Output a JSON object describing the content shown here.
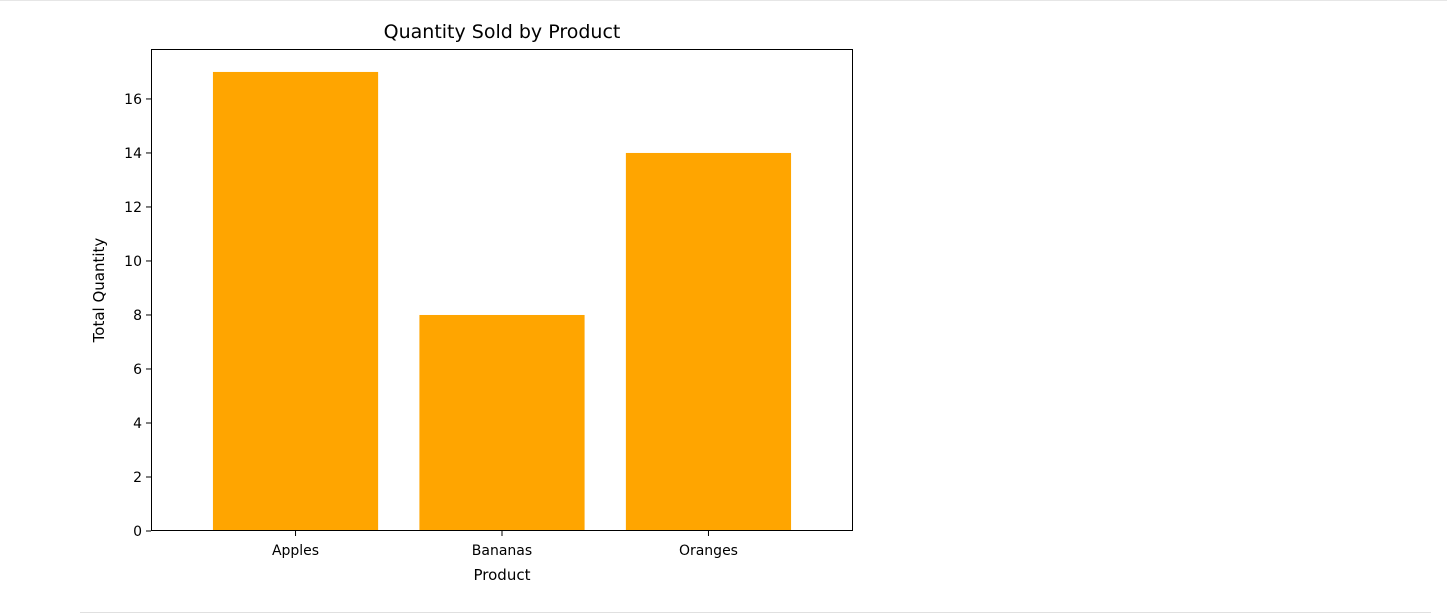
{
  "chart_data": {
    "type": "bar",
    "title": "Quantity Sold by Product",
    "xlabel": "Product",
    "ylabel": "Total Quantity",
    "categories": [
      "Apples",
      "Bananas",
      "Oranges"
    ],
    "values": [
      17,
      8,
      14
    ],
    "ylim": [
      0,
      17.85
    ],
    "yticks": [
      0,
      2,
      4,
      6,
      8,
      10,
      12,
      14,
      16
    ],
    "bar_color": "#ffa500",
    "grid": false,
    "legend": "none"
  }
}
